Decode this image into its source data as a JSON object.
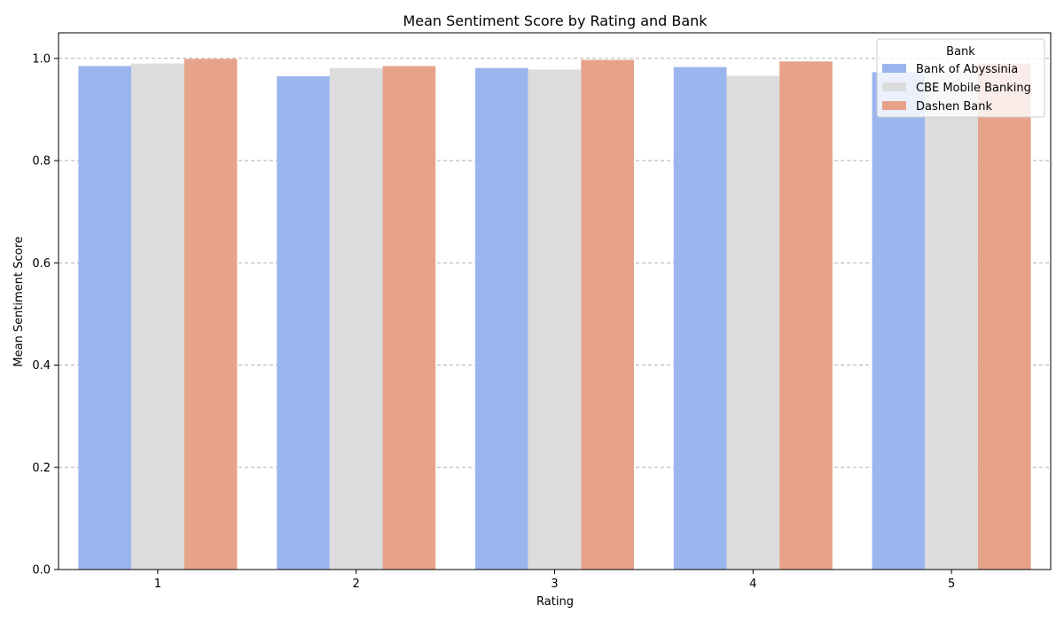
{
  "chart_data": {
    "type": "bar",
    "title": "Mean Sentiment Score by Rating and Bank",
    "xlabel": "Rating",
    "ylabel": "Mean Sentiment Score",
    "categories": [
      "1",
      "2",
      "3",
      "4",
      "5"
    ],
    "series": [
      {
        "name": "Bank of Abyssinia",
        "color": "#9bb5ef",
        "values": [
          0.985,
          0.965,
          0.981,
          0.983,
          0.973
        ]
      },
      {
        "name": "CBE Mobile Banking",
        "color": "#dcdcdc",
        "values": [
          0.99,
          0.981,
          0.978,
          0.966,
          0.975
        ]
      },
      {
        "name": "Dashen Bank",
        "color": "#e6a28a",
        "values": [
          0.999,
          0.985,
          0.997,
          0.994,
          0.99
        ]
      }
    ],
    "ylim": [
      0,
      1.05
    ],
    "yticks": [
      0.0,
      0.2,
      0.4,
      0.6,
      0.8,
      1.0
    ],
    "ytick_labels": [
      "0.0",
      "0.2",
      "0.4",
      "0.6",
      "0.8",
      "1.0"
    ],
    "grid": "y, dashed",
    "legend": {
      "title": "Bank",
      "position": "top-right"
    }
  }
}
